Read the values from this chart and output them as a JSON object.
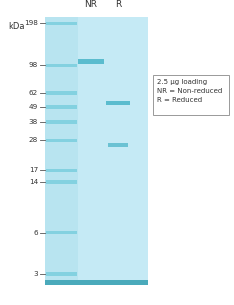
{
  "fig_bg": "#ffffff",
  "gel_bg": "#c5eaf5",
  "ladder_strip_color": "#b8e4f0",
  "ladder_band_color": "#7ecfdf",
  "sample_band_color": "#5bbcce",
  "bottom_band_color": "#4aaabb",
  "kda_label": "kDa",
  "ladder_marks": [
    198,
    98,
    62,
    49,
    38,
    28,
    17,
    14,
    6,
    3
  ],
  "lane_labels": [
    "NR",
    "R"
  ],
  "legend_text": "2.5 μg loading\nNR = Non-reduced\nR = Reduced",
  "nr_band_kda": 105,
  "r_band1_kda": 52,
  "r_band2_kda": 26
}
